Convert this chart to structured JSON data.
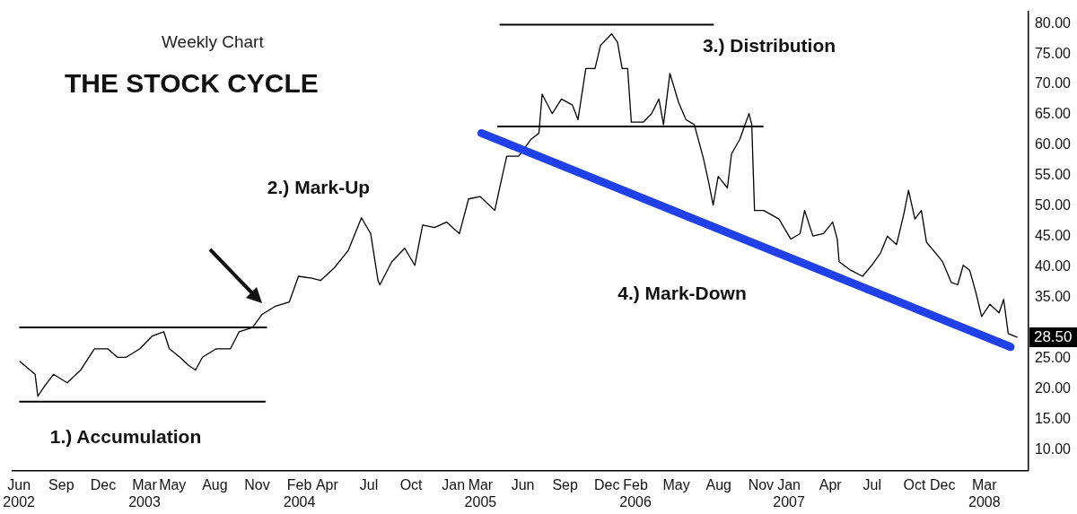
{
  "chart_data": {
    "type": "line",
    "title": "THE STOCK CYCLE",
    "subtitle": "Weekly Chart",
    "marker": "none",
    "xlim": [
      "2002-05-18",
      "2008-06-05"
    ],
    "ylim": [
      6.6,
      82
    ],
    "xticks": [
      {
        "value": "2002-06-01",
        "label": "Jun\n2002"
      },
      {
        "value": "2002-09-01",
        "label": "Sep"
      },
      {
        "value": "2002-12-01",
        "label": "Dec"
      },
      {
        "value": "2003-03-01",
        "label": "Mar\n2003"
      },
      {
        "value": "2003-05-01",
        "label": "May"
      },
      {
        "value": "2003-08-01",
        "label": "Aug"
      },
      {
        "value": "2003-11-01",
        "label": "Nov"
      },
      {
        "value": "2004-02-01",
        "label": "Feb\n2004"
      },
      {
        "value": "2004-04-01",
        "label": "Apr"
      },
      {
        "value": "2004-07-01",
        "label": "Jul"
      },
      {
        "value": "2004-10-01",
        "label": "Oct"
      },
      {
        "value": "2005-01-01",
        "label": "Jan"
      },
      {
        "value": "2005-03-01",
        "label": "Mar\n2005"
      },
      {
        "value": "2005-06-01",
        "label": "Jun"
      },
      {
        "value": "2005-09-01",
        "label": "Sep"
      },
      {
        "value": "2005-12-01",
        "label": "Dec"
      },
      {
        "value": "2006-02-01",
        "label": "Feb\n2006"
      },
      {
        "value": "2006-05-01",
        "label": "May"
      },
      {
        "value": "2006-08-01",
        "label": "Aug"
      },
      {
        "value": "2006-11-01",
        "label": "Nov"
      },
      {
        "value": "2007-01-01",
        "label": "Jan\n2007"
      },
      {
        "value": "2007-04-01",
        "label": "Apr"
      },
      {
        "value": "2007-07-01",
        "label": "Jul"
      },
      {
        "value": "2007-10-01",
        "label": "Oct"
      },
      {
        "value": "2007-12-01",
        "label": "Dec"
      },
      {
        "value": "2008-03-01",
        "label": "Mar\n2008"
      }
    ],
    "yticks": [
      {
        "value": 10,
        "label": "10.00"
      },
      {
        "value": 15,
        "label": "15.00"
      },
      {
        "value": 20,
        "label": "20.00"
      },
      {
        "value": 25,
        "label": "25.00"
      },
      {
        "value": 35,
        "label": "35.00"
      },
      {
        "value": 40,
        "label": "40.00"
      },
      {
        "value": 45,
        "label": "45.00"
      },
      {
        "value": 50,
        "label": "50.00"
      },
      {
        "value": 55,
        "label": "55.00"
      },
      {
        "value": 60,
        "label": "60.00"
      },
      {
        "value": 65,
        "label": "65.00"
      },
      {
        "value": 70,
        "label": "70.00"
      },
      {
        "value": 75,
        "label": "75.00"
      },
      {
        "value": 80,
        "label": "80.00"
      }
    ],
    "series": [
      {
        "color": "#000000",
        "x": [
          "2002-06-03",
          "2002-07-06",
          "2002-07-12",
          "2002-07-25",
          "2002-08-15",
          "2002-09-14",
          "2002-10-13",
          "2002-11-12",
          "2002-12-11",
          "2003-01-01",
          "2003-01-20",
          "2003-02-19",
          "2003-03-18",
          "2003-04-12",
          "2003-04-24",
          "2003-05-17",
          "2003-06-06",
          "2003-06-20",
          "2003-07-05",
          "2003-08-04",
          "2003-09-04",
          "2003-09-23",
          "2003-10-22",
          "2003-11-11",
          "2003-12-11",
          "2004-01-10",
          "2004-01-30",
          "2004-02-28",
          "2004-03-18",
          "2004-04-17",
          "2004-05-17",
          "2004-06-15",
          "2004-07-05",
          "2004-07-21",
          "2004-07-25",
          "2004-08-20",
          "2004-09-17",
          "2004-10-09",
          "2004-10-26",
          "2004-11-21",
          "2004-12-17",
          "2005-01-14",
          "2005-02-03",
          "2005-02-28",
          "2005-04-01",
          "2005-04-13",
          "2005-04-27",
          "2005-05-23",
          "2005-06-19",
          "2005-07-06",
          "2005-07-13",
          "2005-08-04",
          "2005-08-24",
          "2005-09-17",
          "2005-09-29",
          "2005-10-16",
          "2005-11-05",
          "2005-11-17",
          "2005-12-11",
          "2005-12-24",
          "2006-01-03",
          "2006-01-15",
          "2006-01-23",
          "2006-02-18",
          "2006-03-08",
          "2006-03-24",
          "2006-04-03",
          "2006-04-17",
          "2006-05-06",
          "2006-05-22",
          "2006-06-09",
          "2006-06-29",
          "2006-07-10",
          "2006-07-20",
          "2006-07-31",
          "2006-08-20",
          "2006-08-29",
          "2006-09-16",
          "2006-10-06",
          "2006-10-12",
          "2006-10-18",
          "2006-11-07",
          "2006-12-10",
          "2007-01-05",
          "2007-01-25",
          "2007-02-04",
          "2007-02-22",
          "2007-03-17",
          "2007-04-06",
          "2007-04-16",
          "2007-04-20",
          "2007-05-15",
          "2007-06-10",
          "2007-06-30",
          "2007-07-19",
          "2007-08-03",
          "2007-08-23",
          "2007-09-08",
          "2007-09-18",
          "2007-10-02",
          "2007-10-16",
          "2007-10-27",
          "2007-11-16",
          "2007-12-01",
          "2007-12-20",
          "2008-01-03",
          "2008-01-15",
          "2008-01-29",
          "2008-02-12",
          "2008-02-24",
          "2008-03-13",
          "2008-04-02",
          "2008-04-12",
          "2008-04-22",
          "2008-05-11"
        ],
        "values": [
          24.5,
          22.4,
          18.8,
          20.3,
          22.4,
          21.0,
          23.1,
          26.6,
          26.6,
          25.2,
          25.2,
          26.6,
          28.7,
          29.4,
          26.6,
          25.2,
          23.8,
          23.1,
          25.2,
          26.6,
          26.6,
          29.4,
          30.1,
          32.2,
          33.6,
          34.3,
          38.5,
          38.2,
          37.8,
          39.9,
          42.7,
          48.1,
          45.5,
          37.8,
          37.1,
          40.9,
          43.1,
          40.3,
          46.9,
          46.5,
          47.4,
          45.5,
          51.2,
          51.6,
          49.3,
          53.5,
          58.2,
          58.2,
          61.0,
          62.0,
          68.4,
          65.2,
          67.6,
          66.6,
          64.2,
          72.6,
          72.6,
          76.4,
          78.3,
          76.9,
          72.6,
          72.6,
          63.8,
          63.8,
          65.2,
          67.6,
          63.4,
          71.8,
          67.0,
          64.2,
          63.4,
          57.8,
          54.0,
          50.2,
          54.9,
          53.0,
          58.6,
          61.0,
          65.2,
          63.4,
          49.3,
          49.3,
          47.9,
          44.6,
          45.5,
          49.3,
          45.1,
          45.5,
          47.4,
          44.6,
          40.9,
          39.5,
          38.5,
          40.3,
          42.3,
          45.1,
          43.7,
          48.8,
          52.6,
          47.9,
          49.3,
          44.1,
          42.3,
          40.9,
          37.5,
          37.1,
          40.3,
          39.5,
          35.7,
          31.9,
          33.9,
          32.5,
          34.7,
          29.1,
          28.5
        ],
        "value_labels": [
          null,
          null,
          null,
          null,
          null,
          null,
          null,
          null,
          null,
          null,
          null,
          null,
          null,
          null,
          null,
          null,
          null,
          null,
          null,
          null,
          null,
          null,
          null,
          null,
          null,
          null,
          null,
          null,
          null,
          null,
          null,
          null,
          null,
          null,
          null,
          null,
          null,
          null,
          null,
          null,
          null,
          null,
          null,
          null,
          null,
          null,
          null,
          null,
          null,
          null,
          null,
          null,
          null,
          null,
          null,
          null,
          null,
          null,
          null,
          null,
          null,
          null,
          null,
          null,
          null,
          null,
          null,
          null,
          null,
          null,
          null,
          null,
          null,
          null,
          null,
          null,
          null,
          null,
          null,
          null,
          null,
          null,
          null,
          null,
          null,
          null,
          null,
          null,
          null,
          null,
          null,
          null,
          null,
          null,
          null,
          null,
          null,
          null,
          null,
          null,
          null,
          null,
          null,
          null,
          null,
          null,
          null,
          null,
          null,
          null,
          null,
          null,
          null,
          null,
          "28.50"
        ]
      },
      {
        "color": "#000000",
        "x": [
          "2002-06-03",
          "2003-11-21"
        ],
        "values": [
          30.1,
          30.1
        ]
      },
      {
        "color": "#000000",
        "x": [
          "2002-06-03",
          "2003-11-18"
        ],
        "values": [
          17.9,
          17.9
        ]
      },
      {
        "color": "#000000",
        "x": [
          "2005-04-13",
          "2006-07-20"
        ],
        "values": [
          79.8,
          79.8
        ]
      },
      {
        "color": "#000000",
        "x": [
          "2005-04-08",
          "2006-11-05"
        ],
        "values": [
          63.1,
          63.1
        ]
      },
      {
        "color": "#2040e8",
        "x": [
          "2005-03-03",
          "2008-04-27"
        ],
        "values": [
          62.0,
          26.9
        ]
      }
    ],
    "annotations": [
      "1.) Accumulation",
      "2.) Mark-Up",
      "3.) Distribution",
      "4.) Mark-Down"
    ]
  }
}
